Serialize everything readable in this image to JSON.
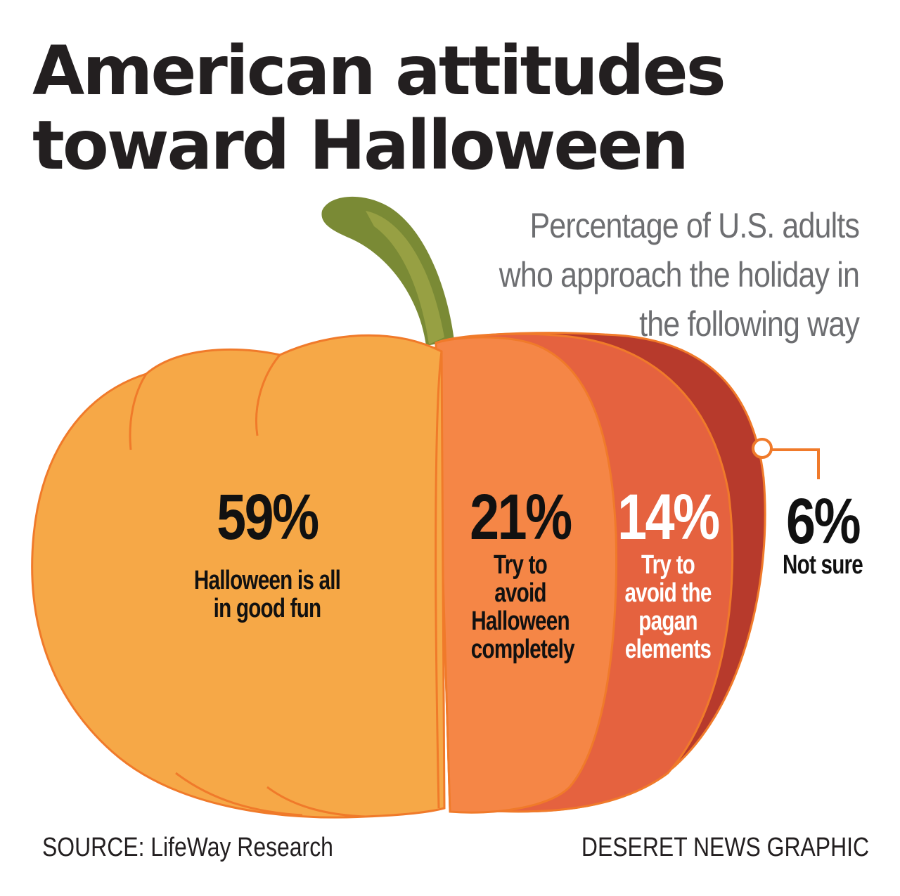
{
  "title": "American attitudes toward Halloween",
  "subtitle": "Percentage of U.S. adults who approach the holiday in the following way",
  "chart_data": {
    "type": "bar",
    "style": "pumpkin-segments",
    "unit": "%",
    "categories": [
      "Halloween is all in good fun",
      "Try to avoid Halloween completely",
      "Try to avoid the pagan elements",
      "Not sure"
    ],
    "values": [
      59,
      21,
      14,
      6
    ],
    "labels": [
      "59%",
      "21%",
      "14%",
      "6%"
    ],
    "colors": [
      "#f6a847",
      "#f58646",
      "#e5623f",
      "#b73a2c"
    ],
    "label_colors": [
      "#111111",
      "#111111",
      "#ffffff",
      "#111111"
    ],
    "stem_colors": [
      "#7a8a35",
      "#97a043"
    ],
    "outline_color": "#f07a2a"
  },
  "footer": {
    "source": "SOURCE:  LifeWay Research",
    "credit": "DESERET NEWS GRAPHIC"
  }
}
